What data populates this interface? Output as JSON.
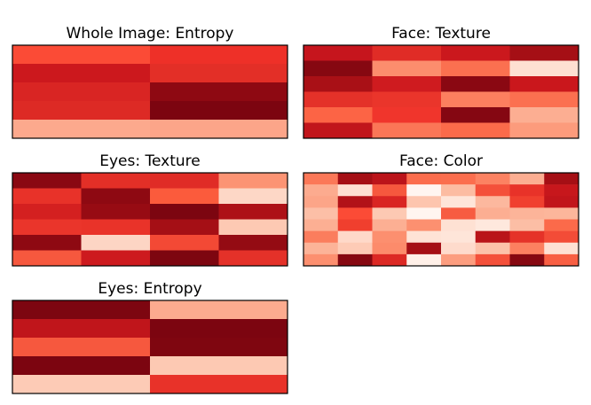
{
  "chart_data": [
    {
      "type": "heatmap",
      "title": "Whole Image: Entropy",
      "rows": 5,
      "cols": 2,
      "cells": [
        [
          "#fb4b36",
          "#ee3028"
        ],
        [
          "#cc181d",
          "#e32f27"
        ],
        [
          "#d92523",
          "#8e0912"
        ],
        [
          "#dd2a25",
          "#7c0510"
        ],
        [
          "#fca98d",
          "#fca589"
        ]
      ],
      "grid": false,
      "legend": "none",
      "xlabel": "",
      "ylabel": ""
    },
    {
      "type": "heatmap",
      "title": "Face: Texture",
      "rows": 6,
      "cols": 4,
      "cells": [
        [
          "#c6151d",
          "#e02c26",
          "#cb181d",
          "#a50f15"
        ],
        [
          "#860811",
          "#fc8d6d",
          "#fb7050",
          "#fee0d2"
        ],
        [
          "#a91016",
          "#cf1b1f",
          "#8a0812",
          "#ca171c"
        ],
        [
          "#e43129",
          "#ea352b",
          "#fc7f5f",
          "#fb7050"
        ],
        [
          "#fc6445",
          "#f0352c",
          "#850712",
          "#fcae92"
        ],
        [
          "#c1151b",
          "#fb7657",
          "#fb6a4a",
          "#fc9b7c"
        ]
      ],
      "grid": false,
      "legend": "none",
      "xlabel": "",
      "ylabel": ""
    },
    {
      "type": "heatmap",
      "title": "Eyes: Texture",
      "rows": 6,
      "cols": 4,
      "cells": [
        [
          "#8a0812",
          "#e32f27",
          "#e02c26",
          "#fc9474"
        ],
        [
          "#e83229",
          "#8e0912",
          "#fb5b3c",
          "#fdd7c6"
        ],
        [
          "#d42020",
          "#970b13",
          "#7c0510",
          "#ad1117"
        ],
        [
          "#ea352b",
          "#e93329",
          "#a50f15",
          "#fdc9b3"
        ],
        [
          "#8e0912",
          "#fdd5c4",
          "#f34935",
          "#940b13"
        ],
        [
          "#f6583e",
          "#cd1a1e",
          "#7d0610",
          "#e43129"
        ]
      ],
      "grid": false,
      "legend": "none",
      "xlabel": "",
      "ylabel": ""
    },
    {
      "type": "heatmap",
      "title": "Face: Color",
      "rows": 8,
      "cols": 8,
      "cells": [
        [
          "#fb7858",
          "#a50f15",
          "#bb141a",
          "#fb6d4d",
          "#fb6e4e",
          "#fc8262",
          "#fcae92",
          "#a50f15"
        ],
        [
          "#fcab8f",
          "#fee0d2",
          "#f6583e",
          "#fff5f0",
          "#fcbca2",
          "#f4503a",
          "#e83229",
          "#c7171c"
        ],
        [
          "#fca588",
          "#b21218",
          "#d92523",
          "#fdc5ae",
          "#fee5d9",
          "#fcb89e",
          "#f0402f",
          "#c1151b"
        ],
        [
          "#fcbfa7",
          "#fb4b36",
          "#fdc9b3",
          "#fff5f0",
          "#f75c41",
          "#fcae92",
          "#fcb499",
          "#fcb69b"
        ],
        [
          "#fcaf93",
          "#f03f2e",
          "#fcaf93",
          "#fc9070",
          "#fee1d3",
          "#fee8dd",
          "#fcbea5",
          "#fb6a4a"
        ],
        [
          "#fb7d5d",
          "#fed9c9",
          "#fc8f6f",
          "#fee3d6",
          "#fee5d9",
          "#b91419",
          "#e53228",
          "#f34c37"
        ],
        [
          "#fcb398",
          "#fdcbb6",
          "#fc8b6b",
          "#a50f15",
          "#fedbcc",
          "#fcc2aa",
          "#fc8060",
          "#fee1d4"
        ],
        [
          "#fc8f6f",
          "#860811",
          "#dc2924",
          "#fff0e8",
          "#fc9d7f",
          "#f4503a",
          "#860811",
          "#f85f43"
        ]
      ],
      "grid": false,
      "legend": "none",
      "xlabel": "",
      "ylabel": ""
    },
    {
      "type": "heatmap",
      "title": "Eyes: Entropy",
      "rows": 5,
      "cols": 2,
      "cells": [
        [
          "#7d0610",
          "#fcab8f"
        ],
        [
          "#c0151b",
          "#7c0510"
        ],
        [
          "#f6583e",
          "#7f0610"
        ],
        [
          "#7c0510",
          "#fdc9b3"
        ],
        [
          "#fdcbb6",
          "#e83229"
        ]
      ],
      "grid": false,
      "legend": "none",
      "xlabel": "",
      "ylabel": ""
    }
  ]
}
